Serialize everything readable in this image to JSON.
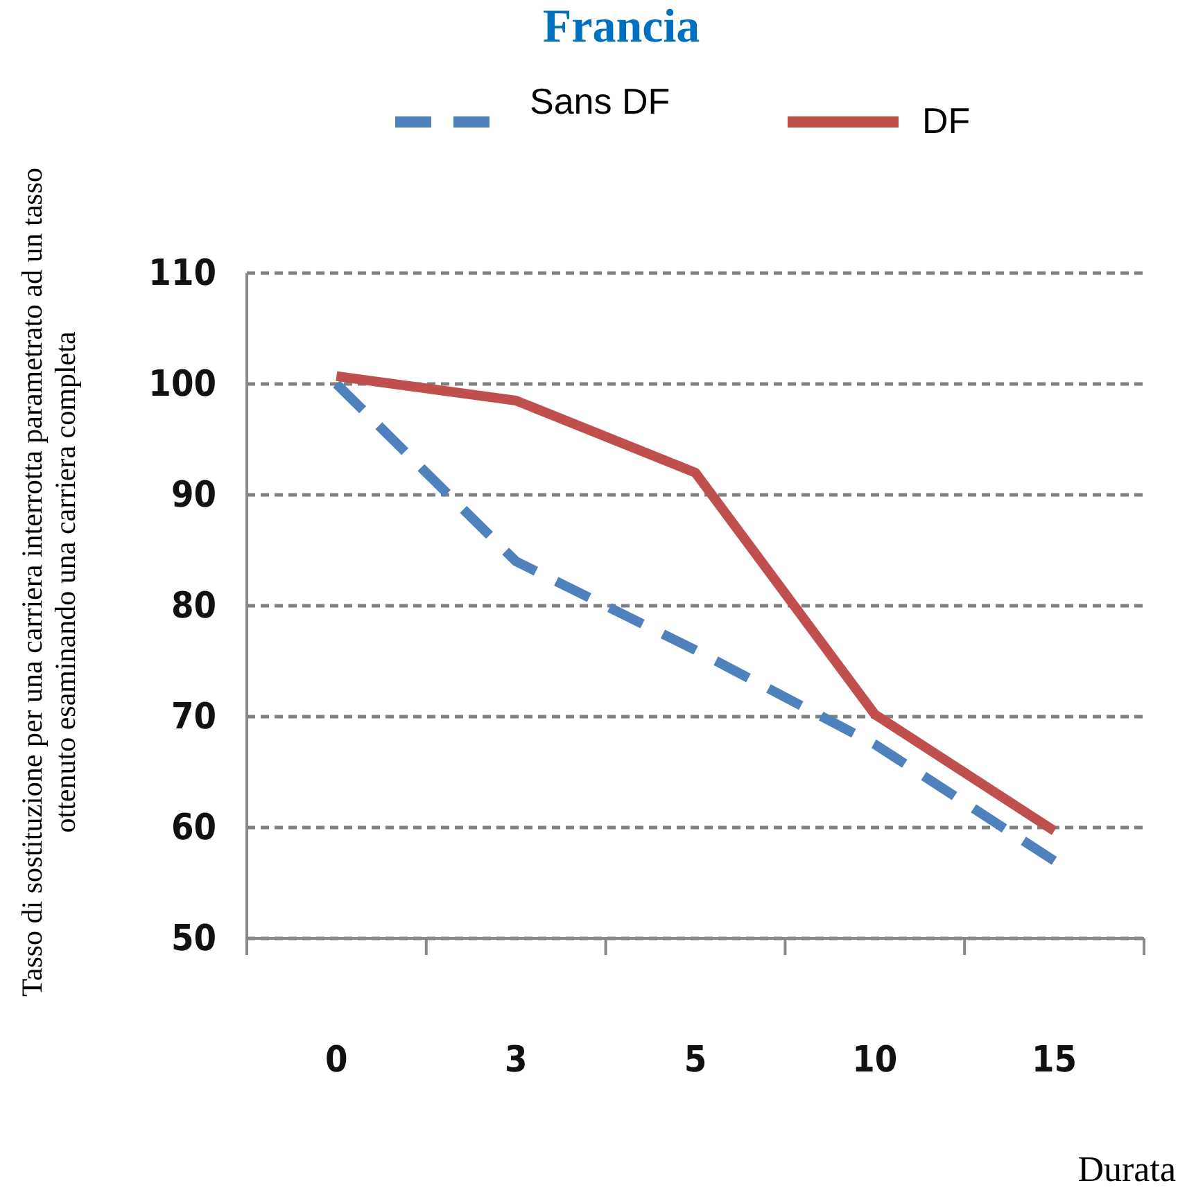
{
  "chart_data": {
    "type": "line",
    "title": "Francia",
    "xlabel": "Durata",
    "ylabel": "Tasso di sostituzione per una carriera interrotta parametrato ad un tasso ottenuto esaminando una carriera completa",
    "categories": [
      "0",
      "3",
      "5",
      "10",
      "15"
    ],
    "series": [
      {
        "name": "Sans DF",
        "color": "#4f81bd",
        "line_style": "dashed",
        "values": [
          100,
          84,
          76,
          67.5,
          57
        ]
      },
      {
        "name": "DF",
        "color": "#c0504d",
        "line_style": "solid",
        "values": [
          100.7,
          98.5,
          92,
          70.2,
          59.7
        ]
      }
    ],
    "ylim": [
      50,
      110
    ],
    "yticks": [
      50,
      60,
      70,
      80,
      90,
      100,
      110
    ],
    "grid": "y",
    "legend": "top",
    "marker": "none"
  }
}
